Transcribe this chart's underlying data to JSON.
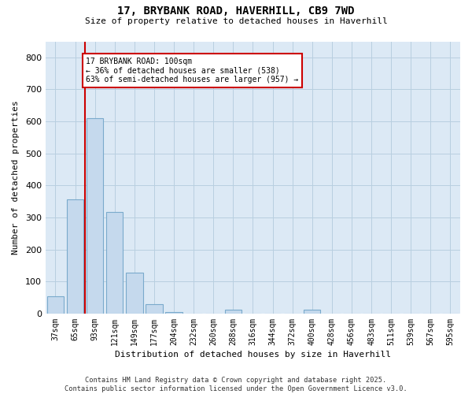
{
  "title1": "17, BRYBANK ROAD, HAVERHILL, CB9 7WD",
  "title2": "Size of property relative to detached houses in Haverhill",
  "xlabel": "Distribution of detached houses by size in Haverhill",
  "ylabel": "Number of detached properties",
  "categories": [
    "37sqm",
    "65sqm",
    "93sqm",
    "121sqm",
    "149sqm",
    "177sqm",
    "204sqm",
    "232sqm",
    "260sqm",
    "288sqm",
    "316sqm",
    "344sqm",
    "372sqm",
    "400sqm",
    "428sqm",
    "456sqm",
    "483sqm",
    "511sqm",
    "539sqm",
    "567sqm",
    "595sqm"
  ],
  "values": [
    55,
    357,
    610,
    318,
    127,
    30,
    5,
    0,
    0,
    12,
    0,
    0,
    0,
    12,
    0,
    0,
    0,
    0,
    0,
    0,
    0
  ],
  "bar_color": "#c5d9ed",
  "bar_edge_color": "#7aaacc",
  "grid_color": "#b8cfe0",
  "vline_color": "#cc0000",
  "annotation_text": "17 BRYBANK ROAD: 100sqm\n← 36% of detached houses are smaller (538)\n63% of semi-detached houses are larger (957) →",
  "annotation_box_facecolor": "#ffffff",
  "annotation_box_edge_color": "#cc0000",
  "ylim": [
    0,
    850
  ],
  "yticks": [
    0,
    100,
    200,
    300,
    400,
    500,
    600,
    700,
    800
  ],
  "footer": "Contains HM Land Registry data © Crown copyright and database right 2025.\nContains public sector information licensed under the Open Government Licence v3.0.",
  "fig_bg_color": "#ffffff",
  "plot_bg_color": "#dce9f5"
}
